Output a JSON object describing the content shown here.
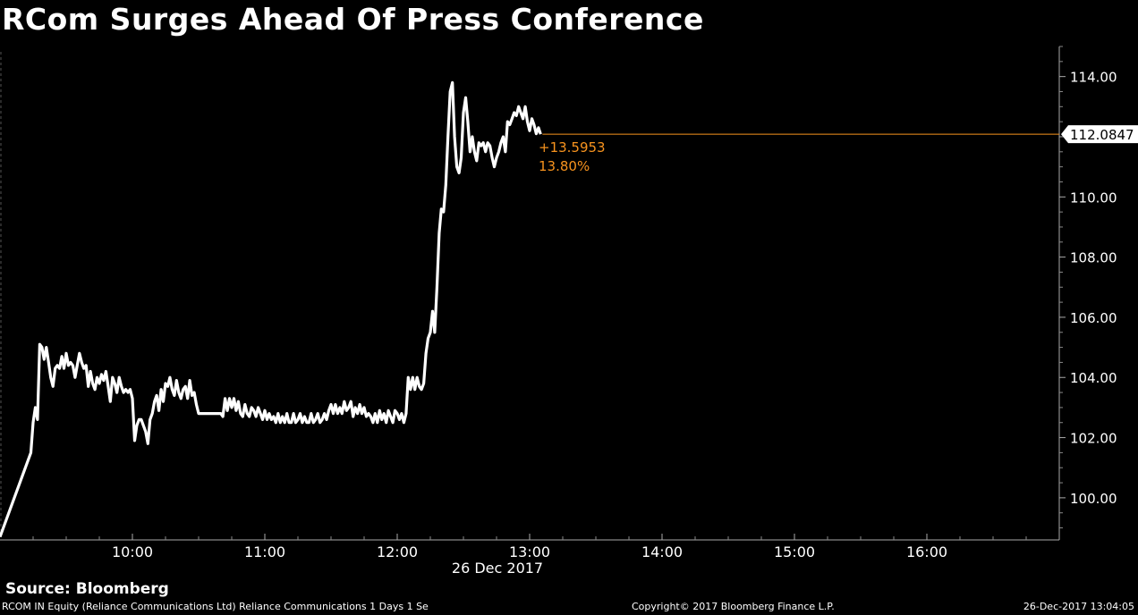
{
  "title": "RCom Surges Ahead Of Press Conference",
  "source": "Source: Bloomberg",
  "footer": {
    "description": "RCOM IN Equity (Reliance Communications Ltd) Reliance Communications 1 Days 1 Se",
    "copyright": "Copyright© 2017 Bloomberg Finance L.P.",
    "timestamp": "26-Dec-2017 13:04:05"
  },
  "colors": {
    "background": "#000000",
    "line": "#ffffff",
    "accent": "#f7931e"
  },
  "chart_data": {
    "type": "line",
    "title": "RCom Surges Ahead Of Press Conference",
    "xlabel": "26 Dec 2017",
    "ylabel": "",
    "x_ticks": [
      "10:00",
      "11:00",
      "12:00",
      "13:00",
      "14:00",
      "15:00",
      "16:00"
    ],
    "y_ticks": [
      "100.00",
      "102.00",
      "104.00",
      "106.00",
      "108.00",
      "110.00",
      "112.00",
      "114.00"
    ],
    "xlim": [
      "09:00",
      "17:00"
    ],
    "ylim": [
      98.6,
      115.0
    ],
    "last_value_label": "112.0847",
    "change_label": "+13.5953",
    "change_pct_label": "13.80%",
    "series": [
      {
        "values": [
          [
            "09:00",
            98.7
          ],
          [
            "09:14",
            101.5
          ],
          [
            "09:15",
            102.5
          ],
          [
            "09:16",
            103.0
          ],
          [
            "09:17",
            102.6
          ],
          [
            "09:18",
            105.1
          ],
          [
            "09:19",
            105.0
          ],
          [
            "09:20",
            104.6
          ],
          [
            "09:21",
            105.0
          ],
          [
            "09:22",
            104.5
          ],
          [
            "09:23",
            104.0
          ],
          [
            "09:24",
            103.7
          ],
          [
            "09:25",
            104.3
          ],
          [
            "09:26",
            104.4
          ],
          [
            "09:27",
            104.3
          ],
          [
            "09:28",
            104.7
          ],
          [
            "09:29",
            104.3
          ],
          [
            "09:30",
            104.8
          ],
          [
            "09:31",
            104.4
          ],
          [
            "09:32",
            104.5
          ],
          [
            "09:33",
            104.4
          ],
          [
            "09:34",
            104.0
          ],
          [
            "09:35",
            104.4
          ],
          [
            "09:36",
            104.8
          ],
          [
            "09:37",
            104.5
          ],
          [
            "09:38",
            104.3
          ],
          [
            "09:39",
            104.4
          ],
          [
            "09:40",
            103.7
          ],
          [
            "09:41",
            104.2
          ],
          [
            "09:42",
            103.8
          ],
          [
            "09:43",
            103.6
          ],
          [
            "09:44",
            104.0
          ],
          [
            "09:45",
            103.8
          ],
          [
            "09:46",
            104.1
          ],
          [
            "09:47",
            103.9
          ],
          [
            "09:48",
            104.2
          ],
          [
            "09:49",
            103.7
          ],
          [
            "09:50",
            103.2
          ],
          [
            "09:51",
            104.0
          ],
          [
            "09:52",
            103.8
          ],
          [
            "09:53",
            103.5
          ],
          [
            "09:54",
            104.0
          ],
          [
            "09:55",
            103.7
          ],
          [
            "09:56",
            103.5
          ],
          [
            "09:57",
            103.6
          ],
          [
            "09:58",
            103.5
          ],
          [
            "09:59",
            103.6
          ],
          [
            "10:00",
            103.3
          ],
          [
            "10:01",
            101.9
          ],
          [
            "10:02",
            102.4
          ],
          [
            "10:03",
            102.6
          ],
          [
            "10:04",
            102.6
          ],
          [
            "10:05",
            102.4
          ],
          [
            "10:06",
            102.2
          ],
          [
            "10:07",
            101.8
          ],
          [
            "10:08",
            102.6
          ],
          [
            "10:09",
            102.8
          ],
          [
            "10:10",
            103.2
          ],
          [
            "10:11",
            103.4
          ],
          [
            "10:12",
            102.9
          ],
          [
            "10:13",
            103.6
          ],
          [
            "10:14",
            103.2
          ],
          [
            "10:15",
            103.8
          ],
          [
            "10:16",
            103.7
          ],
          [
            "10:17",
            104.0
          ],
          [
            "10:18",
            103.6
          ],
          [
            "10:19",
            103.4
          ],
          [
            "10:20",
            103.9
          ],
          [
            "10:21",
            103.5
          ],
          [
            "10:22",
            103.3
          ],
          [
            "10:23",
            103.6
          ],
          [
            "10:24",
            103.7
          ],
          [
            "10:25",
            103.3
          ],
          [
            "10:26",
            103.9
          ],
          [
            "10:27",
            103.4
          ],
          [
            "10:28",
            103.5
          ],
          [
            "10:29",
            103.1
          ],
          [
            "10:30",
            102.8
          ],
          [
            "10:35",
            102.8
          ],
          [
            "10:40",
            102.8
          ],
          [
            "10:41",
            102.7
          ],
          [
            "10:42",
            103.3
          ],
          [
            "10:43",
            102.9
          ],
          [
            "10:44",
            103.3
          ],
          [
            "10:45",
            103.0
          ],
          [
            "10:46",
            103.3
          ],
          [
            "10:47",
            102.9
          ],
          [
            "10:48",
            103.2
          ],
          [
            "10:49",
            102.8
          ],
          [
            "10:50",
            102.7
          ],
          [
            "10:51",
            103.1
          ],
          [
            "10:52",
            102.8
          ],
          [
            "10:53",
            102.7
          ],
          [
            "10:54",
            103.0
          ],
          [
            "10:55",
            102.9
          ],
          [
            "10:56",
            102.7
          ],
          [
            "10:57",
            103.0
          ],
          [
            "10:58",
            102.8
          ],
          [
            "10:59",
            102.6
          ],
          [
            "11:00",
            102.9
          ],
          [
            "11:01",
            102.6
          ],
          [
            "11:02",
            102.8
          ],
          [
            "11:03",
            102.6
          ],
          [
            "11:04",
            102.7
          ],
          [
            "11:05",
            102.5
          ],
          [
            "11:06",
            102.8
          ],
          [
            "11:07",
            102.5
          ],
          [
            "11:08",
            102.7
          ],
          [
            "11:09",
            102.5
          ],
          [
            "11:10",
            102.8
          ],
          [
            "11:11",
            102.5
          ],
          [
            "11:12",
            102.5
          ],
          [
            "11:13",
            102.8
          ],
          [
            "11:14",
            102.5
          ],
          [
            "11:15",
            102.6
          ],
          [
            "11:16",
            102.8
          ],
          [
            "11:17",
            102.5
          ],
          [
            "11:18",
            102.7
          ],
          [
            "11:19",
            102.5
          ],
          [
            "11:20",
            102.5
          ],
          [
            "11:21",
            102.8
          ],
          [
            "11:22",
            102.5
          ],
          [
            "11:23",
            102.6
          ],
          [
            "11:24",
            102.8
          ],
          [
            "11:25",
            102.5
          ],
          [
            "11:26",
            102.6
          ],
          [
            "11:27",
            102.8
          ],
          [
            "11:28",
            102.6
          ],
          [
            "11:29",
            102.9
          ],
          [
            "11:30",
            103.1
          ],
          [
            "11:31",
            102.8
          ],
          [
            "11:32",
            103.1
          ],
          [
            "11:33",
            102.8
          ],
          [
            "11:34",
            103.0
          ],
          [
            "11:35",
            102.8
          ],
          [
            "11:36",
            103.2
          ],
          [
            "11:37",
            102.9
          ],
          [
            "11:38",
            103.0
          ],
          [
            "11:39",
            103.2
          ],
          [
            "11:40",
            102.7
          ],
          [
            "11:41",
            103.0
          ],
          [
            "11:42",
            102.8
          ],
          [
            "11:43",
            103.1
          ],
          [
            "11:44",
            102.8
          ],
          [
            "11:45",
            103.0
          ],
          [
            "11:46",
            102.7
          ],
          [
            "11:47",
            102.8
          ],
          [
            "11:48",
            102.7
          ],
          [
            "11:49",
            102.5
          ],
          [
            "11:50",
            102.8
          ],
          [
            "11:51",
            102.5
          ],
          [
            "11:52",
            102.9
          ],
          [
            "11:53",
            102.6
          ],
          [
            "11:54",
            102.8
          ],
          [
            "11:55",
            102.5
          ],
          [
            "11:56",
            102.9
          ],
          [
            "11:57",
            102.7
          ],
          [
            "11:58",
            102.5
          ],
          [
            "11:59",
            102.9
          ],
          [
            "12:00",
            102.8
          ],
          [
            "12:01",
            102.6
          ],
          [
            "12:02",
            102.8
          ],
          [
            "12:03",
            102.5
          ],
          [
            "12:04",
            102.8
          ],
          [
            "12:05",
            104.0
          ],
          [
            "12:06",
            103.6
          ],
          [
            "12:07",
            104.0
          ],
          [
            "12:08",
            103.6
          ],
          [
            "12:09",
            104.0
          ],
          [
            "12:10",
            103.7
          ],
          [
            "12:11",
            103.6
          ],
          [
            "12:12",
            103.8
          ],
          [
            "12:13",
            104.8
          ],
          [
            "12:14",
            105.3
          ],
          [
            "12:15",
            105.5
          ],
          [
            "12:16",
            106.2
          ],
          [
            "12:17",
            105.5
          ],
          [
            "12:18",
            107.0
          ],
          [
            "12:19",
            108.8
          ],
          [
            "12:20",
            109.6
          ],
          [
            "12:21",
            109.5
          ],
          [
            "12:22",
            110.4
          ],
          [
            "12:23",
            112.0
          ],
          [
            "12:24",
            113.5
          ],
          [
            "12:25",
            113.8
          ],
          [
            "12:26",
            112.0
          ],
          [
            "12:27",
            111.0
          ],
          [
            "12:28",
            110.8
          ],
          [
            "12:29",
            111.3
          ],
          [
            "12:30",
            112.8
          ],
          [
            "12:31",
            113.3
          ],
          [
            "12:32",
            112.5
          ],
          [
            "12:33",
            111.5
          ],
          [
            "12:34",
            112.0
          ],
          [
            "12:35",
            111.5
          ],
          [
            "12:36",
            111.2
          ],
          [
            "12:37",
            111.8
          ],
          [
            "12:38",
            111.7
          ],
          [
            "12:39",
            111.8
          ],
          [
            "12:40",
            111.5
          ],
          [
            "12:41",
            111.8
          ],
          [
            "12:42",
            111.7
          ],
          [
            "12:43",
            111.3
          ],
          [
            "12:44",
            111.0
          ],
          [
            "12:45",
            111.3
          ],
          [
            "12:46",
            111.5
          ],
          [
            "12:47",
            111.8
          ],
          [
            "12:48",
            112.0
          ],
          [
            "12:49",
            111.5
          ],
          [
            "12:50",
            112.5
          ],
          [
            "12:51",
            112.4
          ],
          [
            "12:52",
            112.6
          ],
          [
            "12:53",
            112.8
          ],
          [
            "12:54",
            112.7
          ],
          [
            "12:55",
            113.0
          ],
          [
            "12:56",
            112.8
          ],
          [
            "12:57",
            112.6
          ],
          [
            "12:58",
            113.0
          ],
          [
            "12:59",
            112.5
          ],
          [
            "13:00",
            112.2
          ],
          [
            "13:01",
            112.6
          ],
          [
            "13:02",
            112.4
          ],
          [
            "13:03",
            112.1
          ],
          [
            "13:04",
            112.3
          ],
          [
            "13:05",
            112.0847
          ]
        ]
      }
    ],
    "grid": false,
    "legend": "none"
  }
}
